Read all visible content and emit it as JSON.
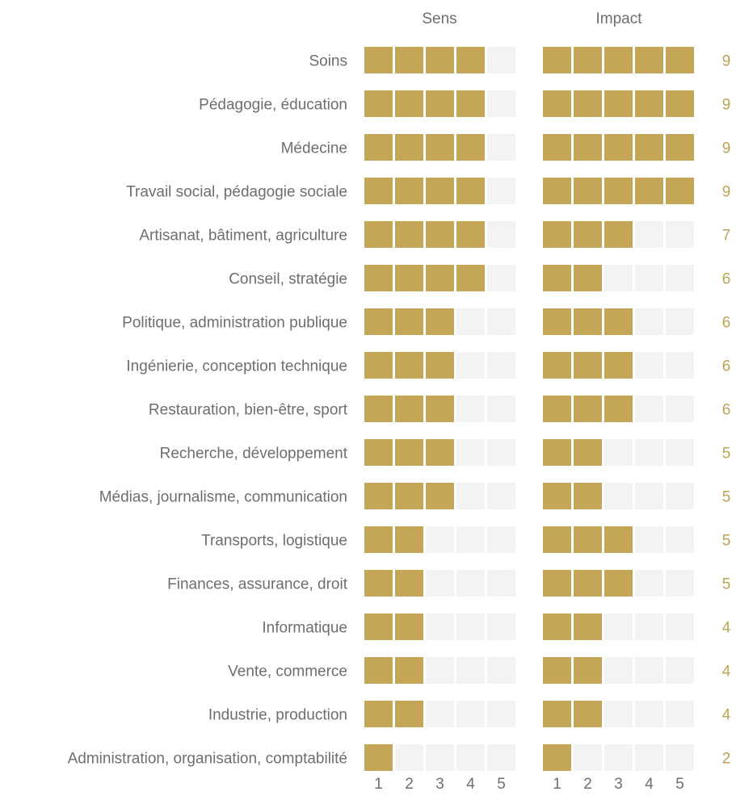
{
  "chart_data": {
    "type": "table",
    "columns": [
      "Sens",
      "Impact"
    ],
    "scale_ticks": [
      "1",
      "2",
      "3",
      "4",
      "5"
    ],
    "max": 5,
    "colors": {
      "filled": "#c5a556",
      "empty": "#f3f3f3",
      "total": "#bda453"
    },
    "rows": [
      {
        "label": "Soins",
        "sens": 4,
        "impact": 5,
        "total": "9"
      },
      {
        "label": "Pédagogie, éducation",
        "sens": 4,
        "impact": 5,
        "total": "9"
      },
      {
        "label": "Médecine",
        "sens": 4,
        "impact": 5,
        "total": "9"
      },
      {
        "label": "Travail social, pédagogie sociale",
        "sens": 4,
        "impact": 5,
        "total": "9"
      },
      {
        "label": "Artisanat, bâtiment, agriculture",
        "sens": 4,
        "impact": 3,
        "total": "7"
      },
      {
        "label": "Conseil, stratégie",
        "sens": 4,
        "impact": 2,
        "total": "6"
      },
      {
        "label": "Politique, administration publique",
        "sens": 3,
        "impact": 3,
        "total": "6"
      },
      {
        "label": "Ingénierie, conception technique",
        "sens": 3,
        "impact": 3,
        "total": "6"
      },
      {
        "label": "Restauration, bien-être, sport",
        "sens": 3,
        "impact": 3,
        "total": "6"
      },
      {
        "label": "Recherche, développement",
        "sens": 3,
        "impact": 2,
        "total": "5"
      },
      {
        "label": "Médias, journalisme, communication",
        "sens": 3,
        "impact": 2,
        "total": "5"
      },
      {
        "label": "Transports, logistique",
        "sens": 2,
        "impact": 3,
        "total": "5"
      },
      {
        "label": "Finances, assurance, droit",
        "sens": 2,
        "impact": 3,
        "total": "5"
      },
      {
        "label": "Informatique",
        "sens": 2,
        "impact": 2,
        "total": "4"
      },
      {
        "label": "Vente, commerce",
        "sens": 2,
        "impact": 2,
        "total": "4"
      },
      {
        "label": "Industrie, production",
        "sens": 2,
        "impact": 2,
        "total": "4"
      },
      {
        "label": "Administration, organisation, comptabilité",
        "sens": 1,
        "impact": 1,
        "total": "2"
      }
    ]
  }
}
